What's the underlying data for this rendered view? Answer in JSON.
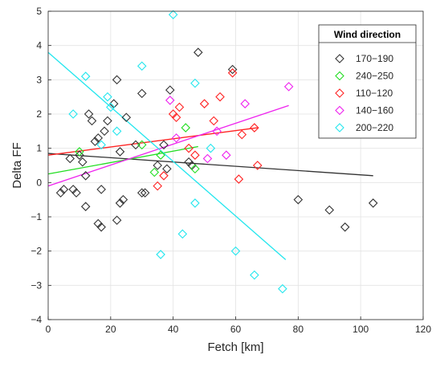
{
  "chart_data": {
    "type": "scatter",
    "xlabel": "Fetch [km]",
    "ylabel": "Delta FF",
    "xlim": [
      0,
      120
    ],
    "ylim": [
      -4,
      5
    ],
    "xticks": [
      0,
      20,
      40,
      60,
      80,
      100,
      120
    ],
    "yticks": [
      -4,
      -3,
      -2,
      -1,
      0,
      1,
      2,
      3,
      4,
      5
    ],
    "grid": true,
    "legend": {
      "title": "Wind direction",
      "placement": "top-right"
    },
    "series": [
      {
        "name": "170−190",
        "color": "#333333",
        "marker": "diamond",
        "points": [
          [
            4,
            -0.3
          ],
          [
            5,
            -0.2
          ],
          [
            7,
            0.7
          ],
          [
            8,
            -0.2
          ],
          [
            9,
            -0.3
          ],
          [
            10,
            0.8
          ],
          [
            11,
            0.6
          ],
          [
            12,
            -0.7
          ],
          [
            12,
            0.2
          ],
          [
            13,
            2.0
          ],
          [
            14,
            1.8
          ],
          [
            15,
            1.2
          ],
          [
            16,
            1.3
          ],
          [
            16,
            -1.2
          ],
          [
            17,
            -1.3
          ],
          [
            17,
            -0.2
          ],
          [
            18,
            1.5
          ],
          [
            19,
            1.8
          ],
          [
            21,
            2.3
          ],
          [
            22,
            3.0
          ],
          [
            22,
            -1.1
          ],
          [
            23,
            0.9
          ],
          [
            23,
            -0.6
          ],
          [
            24,
            -0.5
          ],
          [
            25,
            1.9
          ],
          [
            28,
            1.1
          ],
          [
            30,
            2.6
          ],
          [
            30,
            -0.3
          ],
          [
            31,
            -0.3
          ],
          [
            35,
            0.5
          ],
          [
            37,
            1.1
          ],
          [
            38,
            0.4
          ],
          [
            39,
            2.7
          ],
          [
            45,
            0.6
          ],
          [
            46,
            0.5
          ],
          [
            48,
            3.8
          ],
          [
            59,
            3.3
          ],
          [
            80,
            -0.5
          ],
          [
            90,
            -0.8
          ],
          [
            95,
            -1.3
          ],
          [
            104,
            -0.6
          ]
        ],
        "fit": [
          [
            0,
            0.85
          ],
          [
            104,
            0.2
          ]
        ]
      },
      {
        "name": "240−250",
        "color": "#22dd22",
        "marker": "diamond",
        "points": [
          [
            10,
            0.9
          ],
          [
            30,
            1.1
          ],
          [
            34,
            0.3
          ],
          [
            36,
            0.8
          ],
          [
            44,
            1.6
          ],
          [
            47,
            0.4
          ]
        ],
        "fit": [
          [
            0,
            0.25
          ],
          [
            48,
            1.05
          ]
        ]
      },
      {
        "name": "110−120",
        "color": "#ff2222",
        "marker": "diamond",
        "points": [
          [
            35,
            -0.1
          ],
          [
            37,
            0.2
          ],
          [
            40,
            2.0
          ],
          [
            41,
            1.9
          ],
          [
            42,
            2.2
          ],
          [
            45,
            1.0
          ],
          [
            47,
            0.8
          ],
          [
            50,
            2.3
          ],
          [
            53,
            1.8
          ],
          [
            55,
            2.5
          ],
          [
            59,
            3.2
          ],
          [
            61,
            0.1
          ],
          [
            62,
            1.4
          ],
          [
            66,
            1.6
          ],
          [
            67,
            0.5
          ]
        ],
        "fit": [
          [
            0,
            0.8
          ],
          [
            67,
            1.6
          ]
        ]
      },
      {
        "name": "140−160",
        "color": "#ee22ee",
        "marker": "diamond",
        "points": [
          [
            39,
            2.4
          ],
          [
            41,
            1.3
          ],
          [
            51,
            0.7
          ],
          [
            54,
            1.5
          ],
          [
            57,
            0.8
          ],
          [
            63,
            2.3
          ],
          [
            77,
            2.8
          ]
        ],
        "fit": [
          [
            0,
            -0.1
          ],
          [
            77,
            2.25
          ]
        ]
      },
      {
        "name": "200−220",
        "color": "#22e6ee",
        "marker": "diamond",
        "points": [
          [
            8,
            2.0
          ],
          [
            12,
            3.1
          ],
          [
            17,
            1.1
          ],
          [
            19,
            2.5
          ],
          [
            20,
            2.2
          ],
          [
            22,
            1.5
          ],
          [
            30,
            3.4
          ],
          [
            36,
            -2.1
          ],
          [
            40,
            4.9
          ],
          [
            43,
            -1.5
          ],
          [
            47,
            2.9
          ],
          [
            47,
            -0.6
          ],
          [
            52,
            1.0
          ],
          [
            60,
            -2.0
          ],
          [
            66,
            -2.7
          ],
          [
            75,
            -3.1
          ]
        ],
        "fit": [
          [
            0,
            3.8
          ],
          [
            76,
            -2.25
          ]
        ]
      }
    ]
  }
}
